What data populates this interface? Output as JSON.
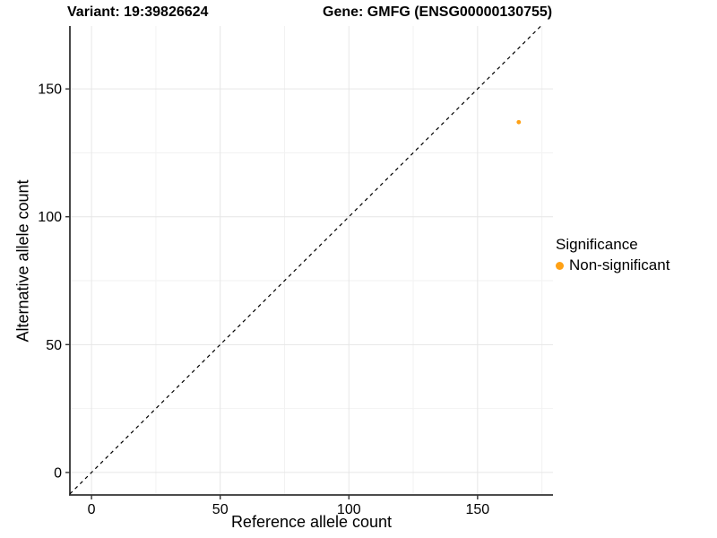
{
  "header": {
    "title_left": "Variant: 19:39826624",
    "title_right": "Gene: GMFG (ENSG00000130755)"
  },
  "chart_data": {
    "type": "scatter",
    "title": "Variant: 19:39826624  /  Gene: GMFG (ENSG00000130755)",
    "xlabel": "Reference allele count",
    "ylabel": "Alternative allele count",
    "xlim": [
      -8.4,
      179.3
    ],
    "ylim": [
      -8.8,
      174.6
    ],
    "x_ticks": [
      0,
      50,
      100,
      150
    ],
    "y_ticks": [
      0,
      50,
      100,
      150
    ],
    "grid": "major and minor gridlines on, light gray, white background",
    "points": [
      {
        "x": 166,
        "y": 137,
        "series": "Non-significant"
      }
    ],
    "identity_line": {
      "slope": 1,
      "intercept": 0,
      "style": "dashed",
      "color": "#000000"
    },
    "legend": {
      "title": "Significance",
      "position": "right",
      "items": [
        {
          "label": "Non-significant",
          "color": "#FFA115"
        }
      ]
    }
  },
  "colors": {
    "point": "#FFA115",
    "axis_line": "#333333",
    "major_grid": "#e6e6e6",
    "minor_grid": "#f2f2f2",
    "tick_text": "#000000"
  }
}
